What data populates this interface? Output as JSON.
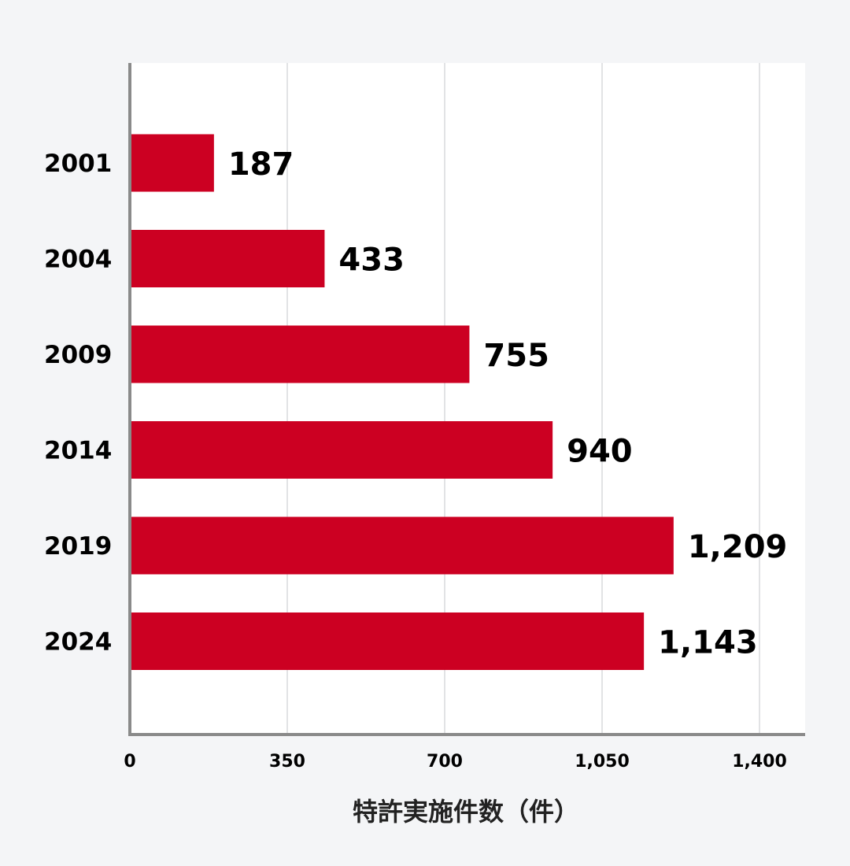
{
  "colors": {
    "bar": "#cc0022",
    "plot_background": "#ffffff",
    "page_background": "#f4f5f7",
    "grid": "#e2e3e5",
    "axis": "#8a8a8a",
    "text": "#000000"
  },
  "chart_data": {
    "type": "bar",
    "orientation": "horizontal",
    "categories": [
      "2001",
      "2004",
      "2009",
      "2014",
      "2019",
      "2024"
    ],
    "values": [
      187,
      433,
      755,
      940,
      1209,
      1143
    ],
    "value_labels": [
      "187",
      "433",
      "755",
      "940",
      "1,209",
      "1,143"
    ],
    "title": "",
    "xlabel": "特許実施件数（件）",
    "ylabel": "",
    "xlim": [
      0,
      1400
    ],
    "xticks": [
      0,
      350,
      700,
      1050,
      1400
    ],
    "xtick_labels": [
      "0",
      "350",
      "700",
      "1,050",
      "1,400"
    ],
    "grid": true,
    "legend": "none"
  }
}
